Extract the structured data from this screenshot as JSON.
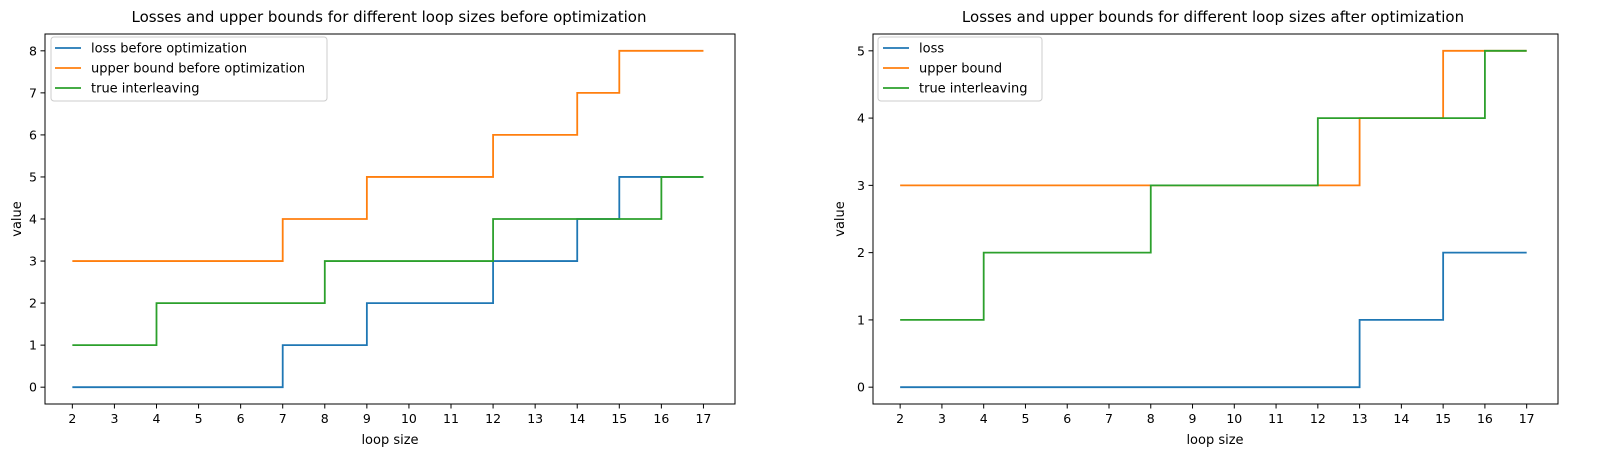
{
  "chart_data": [
    {
      "type": "line",
      "step": "post",
      "title": "Losses and upper bounds for different loop sizes before optimization",
      "xlabel": "loop size",
      "ylabel": "value",
      "xlim": [
        1.35,
        17.75
      ],
      "ylim": [
        -0.4,
        8.4
      ],
      "xticks": [
        2,
        3,
        4,
        5,
        6,
        7,
        8,
        9,
        10,
        11,
        12,
        13,
        14,
        15,
        16,
        17
      ],
      "yticks": [
        0,
        1,
        2,
        3,
        4,
        5,
        6,
        7,
        8
      ],
      "grid": false,
      "legend": "upper-left",
      "x": [
        2,
        3,
        4,
        5,
        6,
        7,
        8,
        9,
        10,
        11,
        12,
        13,
        14,
        15,
        16,
        17
      ],
      "series": [
        {
          "name": "loss before optimization",
          "color": "#1f77b4",
          "values": [
            0,
            0,
            0,
            0,
            0,
            1,
            1,
            2,
            2,
            2,
            3,
            3,
            4,
            5,
            5,
            5
          ]
        },
        {
          "name": "upper bound before optimization",
          "color": "#ff7f0e",
          "values": [
            3,
            3,
            3,
            3,
            3,
            4,
            4,
            5,
            5,
            5,
            6,
            6,
            7,
            8,
            8,
            8
          ]
        },
        {
          "name": "true interleaving",
          "color": "#2ca02c",
          "values": [
            1,
            1,
            2,
            2,
            2,
            2,
            3,
            3,
            3,
            3,
            4,
            4,
            4,
            4,
            5,
            5
          ]
        }
      ]
    },
    {
      "type": "line",
      "step": "post",
      "title": "Losses and upper bounds for different loop sizes after optimization",
      "xlabel": "loop size",
      "ylabel": "value",
      "xlim": [
        1.35,
        17.75
      ],
      "ylim": [
        -0.25,
        5.25
      ],
      "xticks": [
        2,
        3,
        4,
        5,
        6,
        7,
        8,
        9,
        10,
        11,
        12,
        13,
        14,
        15,
        16,
        17
      ],
      "yticks": [
        0,
        1,
        2,
        3,
        4,
        5
      ],
      "grid": false,
      "legend": "upper-left",
      "x": [
        2,
        3,
        4,
        5,
        6,
        7,
        8,
        9,
        10,
        11,
        12,
        13,
        14,
        15,
        16,
        17
      ],
      "series": [
        {
          "name": "loss",
          "color": "#1f77b4",
          "values": [
            0,
            0,
            0,
            0,
            0,
            0,
            0,
            0,
            0,
            0,
            0,
            1,
            1,
            2,
            2,
            2
          ]
        },
        {
          "name": "upper bound",
          "color": "#ff7f0e",
          "values": [
            3,
            3,
            3,
            3,
            3,
            3,
            3,
            3,
            3,
            3,
            3,
            4,
            4,
            5,
            5,
            5
          ]
        },
        {
          "name": "true interleaving",
          "color": "#2ca02c",
          "values": [
            1,
            1,
            2,
            2,
            2,
            2,
            3,
            3,
            3,
            3,
            4,
            4,
            4,
            4,
            5,
            5
          ]
        }
      ]
    }
  ]
}
